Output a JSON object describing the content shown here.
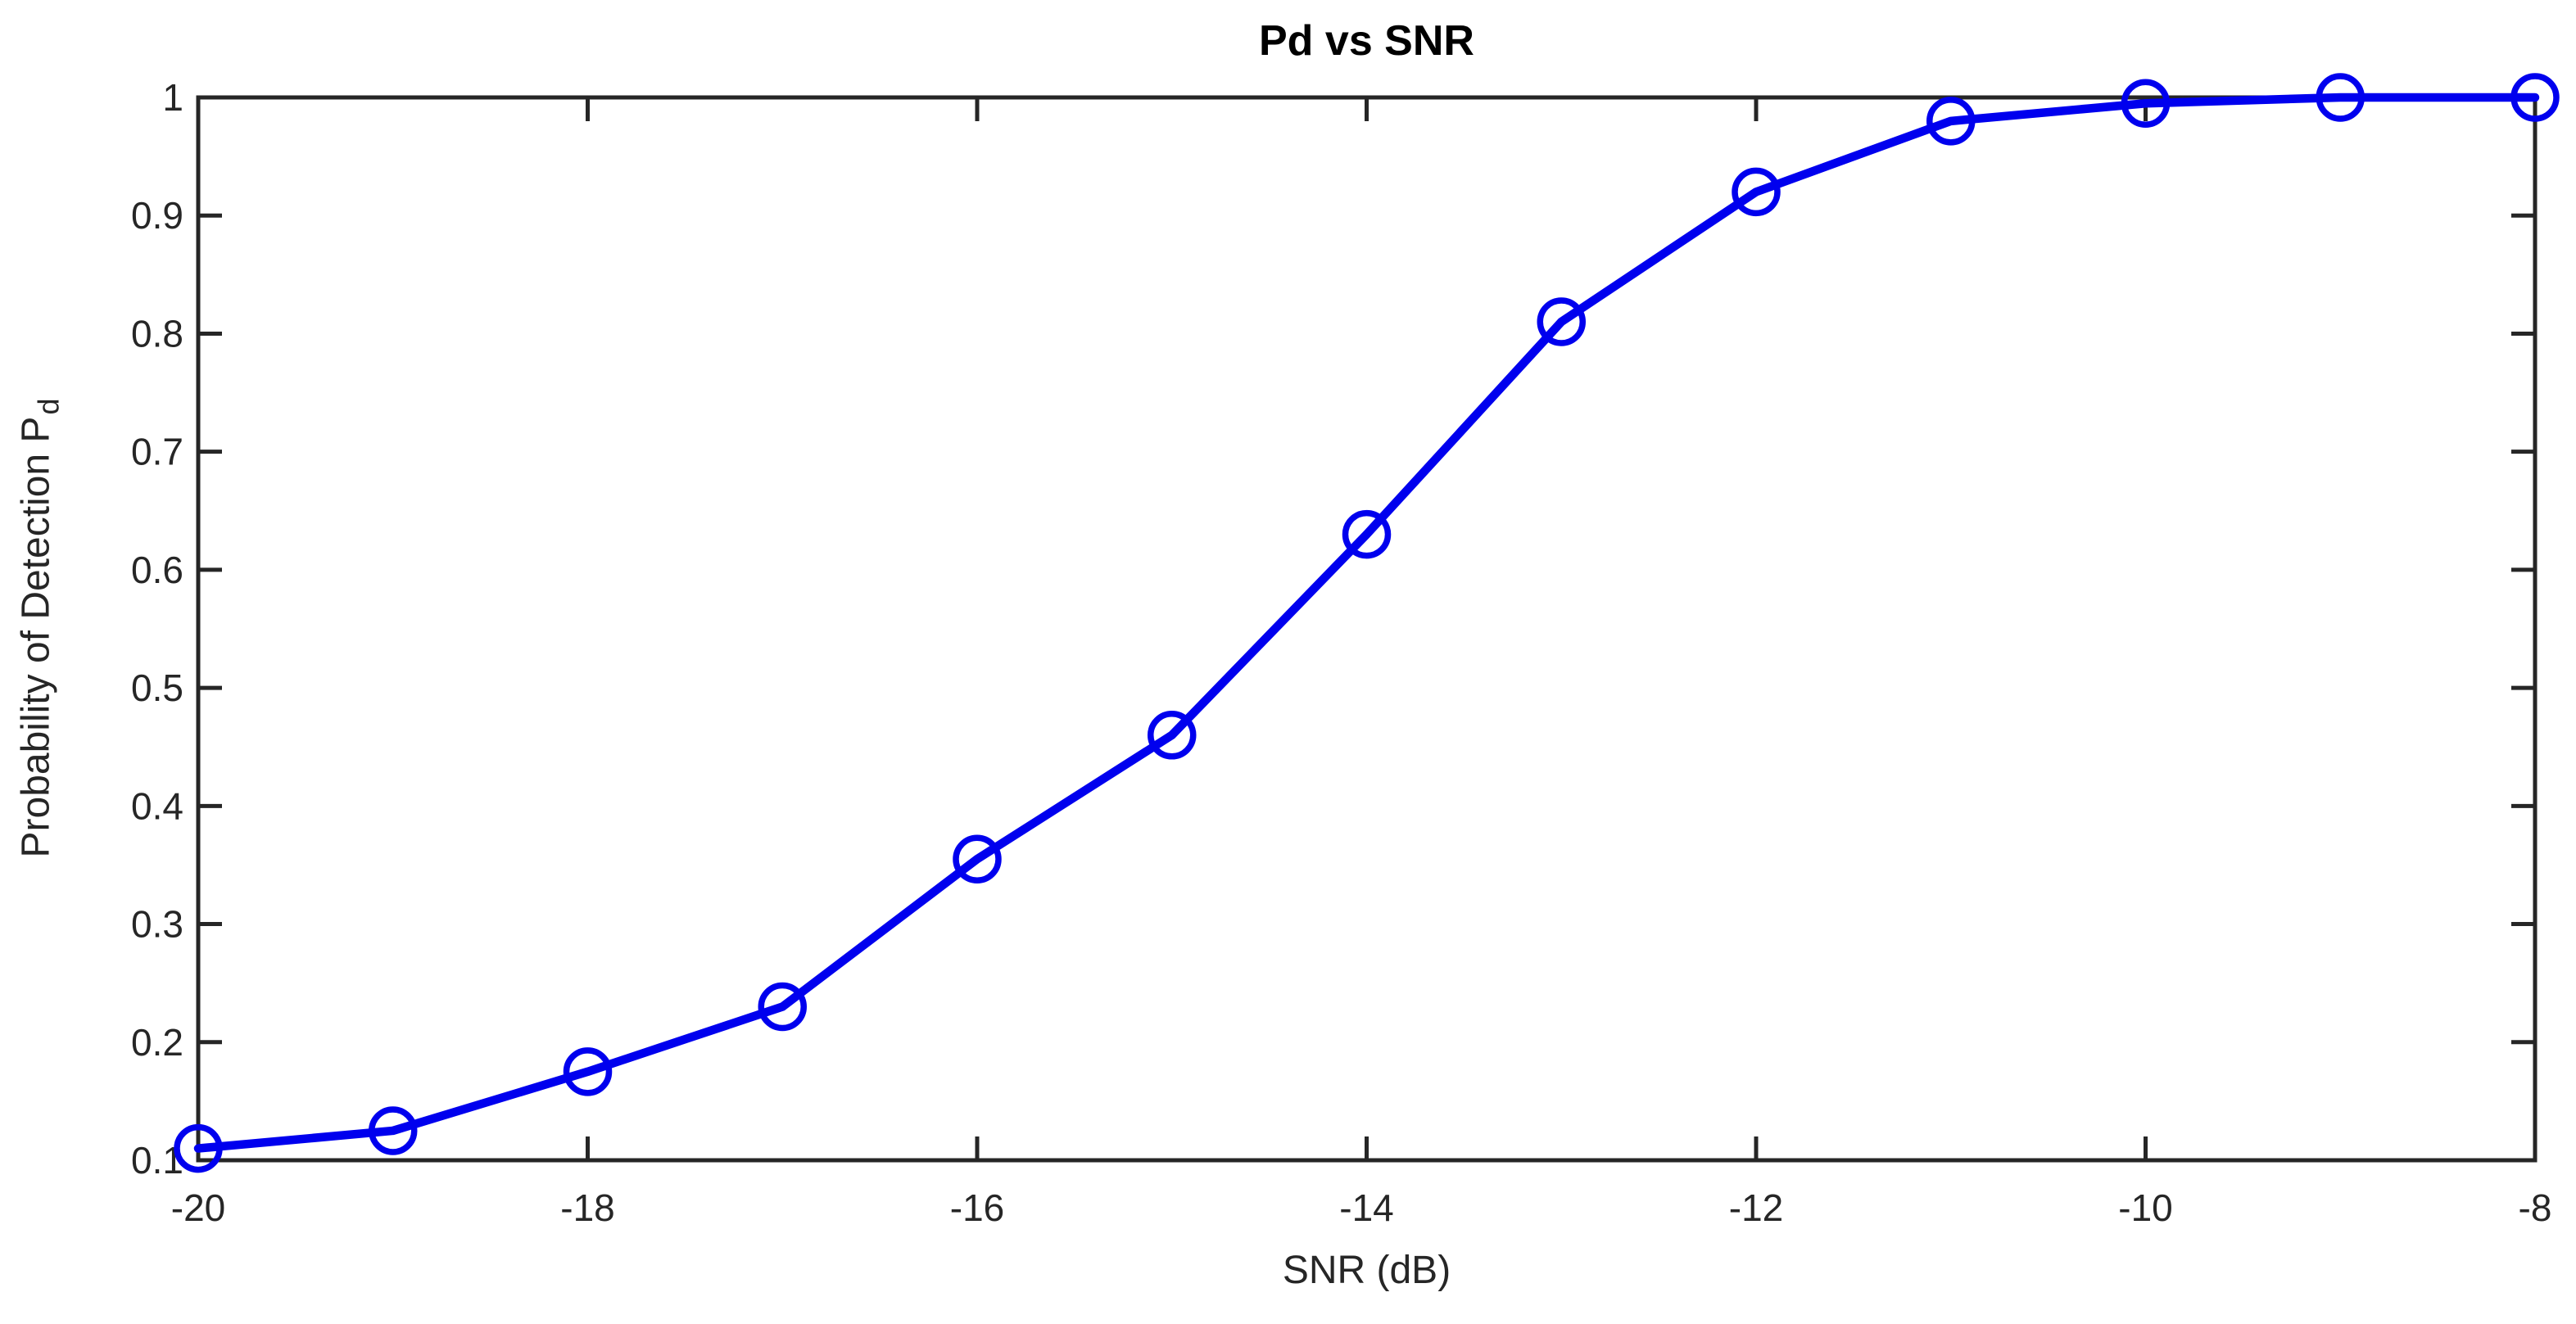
{
  "chart_data": {
    "type": "line",
    "title": "Pd vs SNR",
    "xlabel": "SNR (dB)",
    "ylabel_main": "Probability of Detection P",
    "ylabel_sub": "d",
    "x": [
      -20,
      -19,
      -18,
      -17,
      -16,
      -15,
      -14,
      -13,
      -12,
      -11,
      -10,
      -9,
      -8
    ],
    "y": [
      0.11,
      0.125,
      0.175,
      0.23,
      0.355,
      0.46,
      0.63,
      0.81,
      0.92,
      0.98,
      0.995,
      1.0,
      1.0
    ],
    "xlim": [
      -20,
      -8
    ],
    "ylim": [
      0.1,
      1.0
    ],
    "xticks": {
      "values": [
        -20,
        -18,
        -16,
        -14,
        -12,
        -10,
        -8
      ],
      "labels": [
        "-20",
        "-18",
        "-16",
        "-14",
        "-12",
        "-10",
        "-8"
      ]
    },
    "yticks": {
      "values": [
        0.1,
        0.2,
        0.3,
        0.4,
        0.5,
        0.6,
        0.7,
        0.8,
        0.9,
        1.0
      ],
      "labels": [
        "0.1",
        "0.2",
        "0.3",
        "0.4",
        "0.5",
        "0.6",
        "0.7",
        "0.8",
        "0.9",
        "1"
      ]
    },
    "grid": false,
    "legend": null,
    "marker": "open-circle",
    "line_color": "#0000EE",
    "axis_color": "#262626",
    "title_color": "#000000",
    "background_color": "#FFFFFF"
  }
}
